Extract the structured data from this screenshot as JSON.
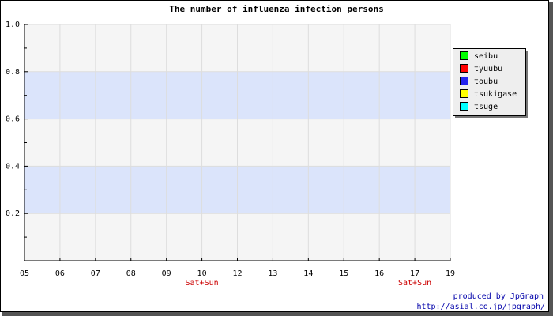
{
  "chart_data": {
    "type": "line",
    "title": "The number of influenza infection persons",
    "categories": [
      "05",
      "06",
      "07",
      "08",
      "09",
      "10",
      "12",
      "13",
      "14",
      "15",
      "16",
      "17",
      "19"
    ],
    "x_sublabels": [
      null,
      null,
      null,
      null,
      null,
      "Sat+Sun",
      null,
      null,
      null,
      null,
      null,
      "Sat+Sun",
      null
    ],
    "series": [
      {
        "name": "seibu",
        "color": "#00ff00",
        "values": [
          null,
          null,
          null,
          null,
          null,
          null,
          null,
          null,
          null,
          null,
          null,
          null,
          null
        ]
      },
      {
        "name": "tyuubu",
        "color": "#ff0000",
        "values": [
          null,
          null,
          null,
          null,
          null,
          null,
          null,
          null,
          null,
          null,
          null,
          null,
          null
        ]
      },
      {
        "name": "toubu",
        "color": "#2222ee",
        "values": [
          null,
          null,
          null,
          null,
          null,
          null,
          null,
          null,
          null,
          null,
          null,
          null,
          null
        ]
      },
      {
        "name": "tsukigase",
        "color": "#ffff00",
        "values": [
          null,
          null,
          null,
          null,
          null,
          null,
          null,
          null,
          null,
          null,
          null,
          null,
          null
        ]
      },
      {
        "name": "tsuge",
        "color": "#00ffff",
        "values": [
          null,
          null,
          null,
          null,
          null,
          null,
          null,
          null,
          null,
          null,
          null,
          null,
          null
        ]
      }
    ],
    "ylim": [
      0,
      1
    ],
    "yticks": [
      0.2,
      0.4,
      0.6,
      0.8,
      {
        "value": 1,
        "label": "1.0"
      }
    ],
    "grid": true,
    "legend_position": "right",
    "footer": [
      "produced by JpGraph",
      "http://asial.co.jp/jpgraph/"
    ]
  }
}
